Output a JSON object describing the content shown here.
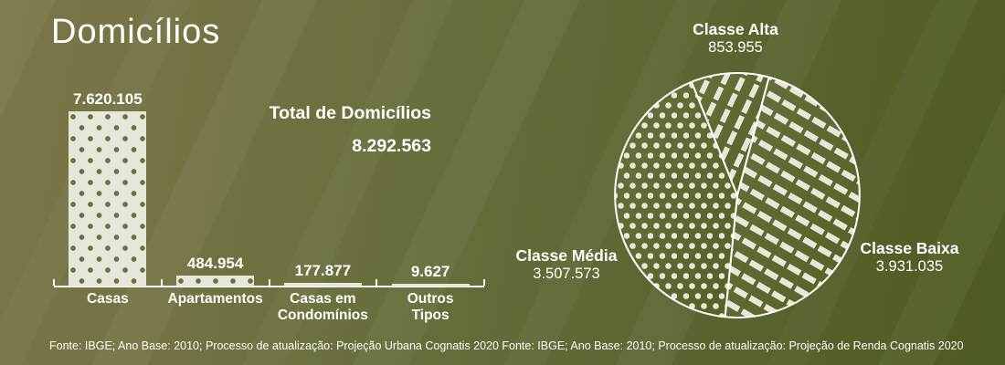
{
  "title": "Domicílios",
  "colors": {
    "background_left": "#7a7748",
    "background_right": "#4c5b21",
    "cream": "#e7e6db",
    "olive_dot": "#6f7038",
    "text": "#ffffff",
    "pie_base_light": "#6b703d",
    "pie_base_dark": "#536024"
  },
  "total": {
    "label": "Total de Domicílios",
    "value": 8292563,
    "value_display": "8.292.563"
  },
  "footers": {
    "left": "Fonte: IBGE; Ano Base: 2010; Processo de atualização: Projeção Urbana Cognatis 2020",
    "right": "Fonte: IBGE; Ano Base: 2010; Processo de atualização: Projeção de Renda Cognatis 2020"
  },
  "chart_data": [
    {
      "type": "bar",
      "title": "Domicílios",
      "categories": [
        "Casas",
        "Apartamentos",
        "Casas em\nCondomínios",
        "Outros\nTipos"
      ],
      "values": [
        7620105,
        484954,
        177877,
        9627
      ],
      "value_labels": [
        "7.620.105",
        "484.954",
        "177.877",
        "9.627"
      ],
      "bar_pattern": "cream-with-olive-polka-dots",
      "axis": "baseline-with-up-ticks, no y-axis, values labeled above bars",
      "ylim": [
        0,
        7620105
      ]
    },
    {
      "type": "pie",
      "start_angle_deg": -22,
      "direction": "clockwise",
      "outline_color": "#ffffff",
      "slices": [
        {
          "label": "Classe Alta",
          "value": 853955,
          "display": "853.955",
          "pattern": "thin-diagonal-stripes-up"
        },
        {
          "label": "Classe Baixa",
          "value": 3931035,
          "display": "3.931.035",
          "pattern": "diagonal-stripes-down"
        },
        {
          "label": "Classe Média",
          "value": 3507573,
          "display": "3.507.573",
          "pattern": "polka-dots"
        }
      ]
    }
  ]
}
